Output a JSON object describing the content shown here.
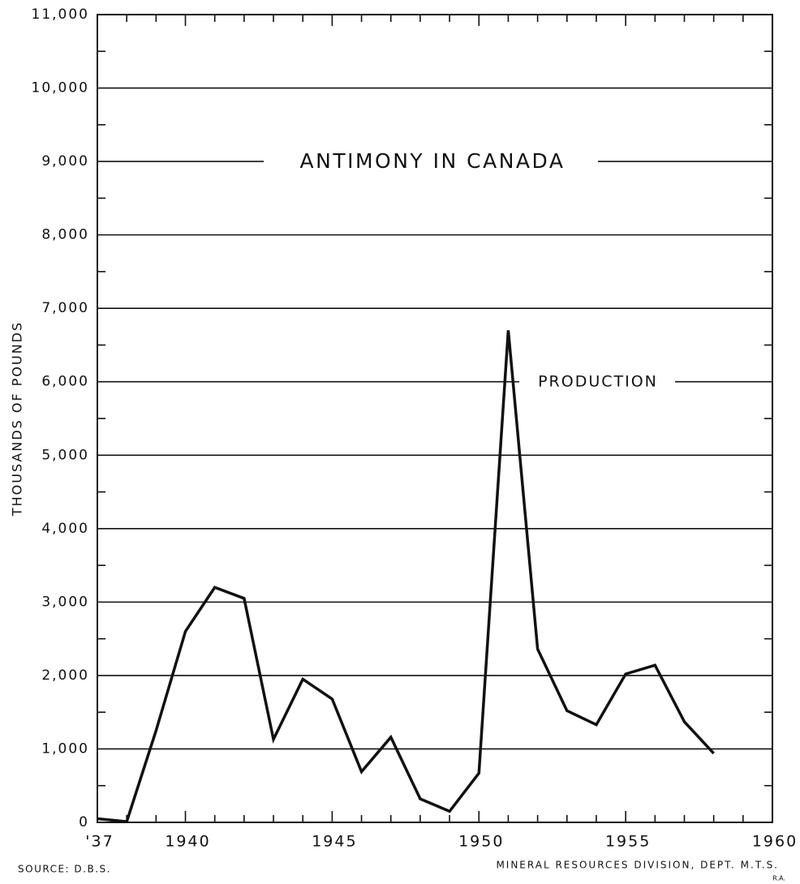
{
  "chart_data": {
    "type": "line",
    "title": "ANTIMONY IN CANADA",
    "ylabel": "THOUSANDS  OF  POUNDS",
    "series_label": "PRODUCTION",
    "source": "SOURCE: D.B.S.",
    "credit": "MINERAL RESOURCES DIVISION, DEPT. M.T.S.",
    "initials": "R.A.",
    "x": [
      1937,
      1938,
      1939,
      1940,
      1941,
      1942,
      1943,
      1944,
      1945,
      1946,
      1947,
      1948,
      1949,
      1950,
      1951,
      1952,
      1953,
      1954,
      1955,
      1956,
      1957,
      1958
    ],
    "series": [
      {
        "name": "PRODUCTION",
        "color": "#111111",
        "values": [
          50,
          10,
          1250,
          2600,
          3200,
          3050,
          1130,
          1950,
          1680,
          690,
          1160,
          320,
          150,
          670,
          6700,
          2360,
          1520,
          1330,
          2020,
          2140,
          1370,
          940
        ]
      }
    ],
    "xlim": [
      1937,
      1960
    ],
    "xticks": [
      {
        "value": 1937,
        "label": "'37"
      },
      1940,
      1945,
      1950,
      1955,
      1960
    ],
    "xminor": [
      1938,
      1939,
      1941,
      1942,
      1943,
      1944,
      1946,
      1947,
      1948,
      1949,
      1951,
      1952,
      1953,
      1954,
      1956,
      1957,
      1958,
      1959
    ],
    "ylim": [
      0,
      11000
    ],
    "yticks": [
      0,
      {
        "value": 1000,
        "label": "1,000"
      },
      {
        "value": 2000,
        "label": "2,000"
      },
      {
        "value": 3000,
        "label": "3,000"
      },
      {
        "value": 4000,
        "label": "4,000"
      },
      {
        "value": 5000,
        "label": "5,000"
      },
      {
        "value": 6000,
        "label": "6,000"
      },
      {
        "value": 7000,
        "label": "7,000"
      },
      {
        "value": 8000,
        "label": "8,000"
      },
      {
        "value": 9000,
        "label": "9,000"
      },
      {
        "value": 10000,
        "label": "10,000"
      },
      {
        "value": 11000,
        "label": "11,000"
      }
    ],
    "yminor": [
      500,
      1500,
      2500,
      3500,
      4500,
      5500,
      6500,
      7500,
      8500,
      9500,
      10500
    ],
    "grid": true
  }
}
